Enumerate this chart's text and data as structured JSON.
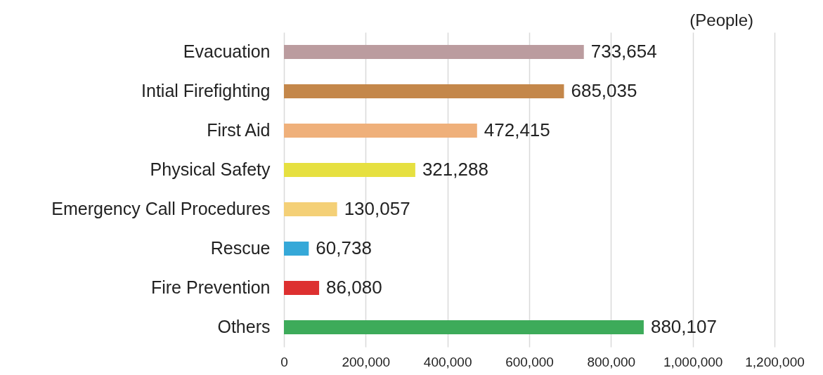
{
  "chart_data": {
    "type": "bar",
    "orientation": "horizontal",
    "annotations": [
      "(People)"
    ],
    "categories": [
      "Evacuation",
      "Intial Firefighting",
      "First Aid",
      "Physical Safety",
      "Emergency Call Procedures",
      "Rescue",
      "Fire Prevention",
      "Others"
    ],
    "values": [
      733654,
      685035,
      472415,
      321288,
      130057,
      60738,
      86080,
      880107
    ],
    "value_labels": [
      "733,654",
      "685,035",
      "472,415",
      "321,288",
      "130,057",
      "60,738",
      "86,080",
      "880,107"
    ],
    "colors": [
      "#bb9c9f",
      "#c4874a",
      "#efb07a",
      "#e6e040",
      "#f4d077",
      "#35a8d8",
      "#dd3030",
      "#3dab5a"
    ],
    "xlim": [
      0,
      1200000
    ],
    "xticks": [
      0,
      {
        "value": 200000,
        "label": "200,000"
      },
      {
        "value": 400000,
        "label": "400,000"
      },
      {
        "value": 600000,
        "label": "600,000"
      },
      {
        "value": 800000,
        "label": "800,000"
      },
      {
        "value": 1000000,
        "label": "1,000,000"
      },
      {
        "value": 1200000,
        "label": "1,200,000"
      }
    ],
    "grid": "x"
  }
}
